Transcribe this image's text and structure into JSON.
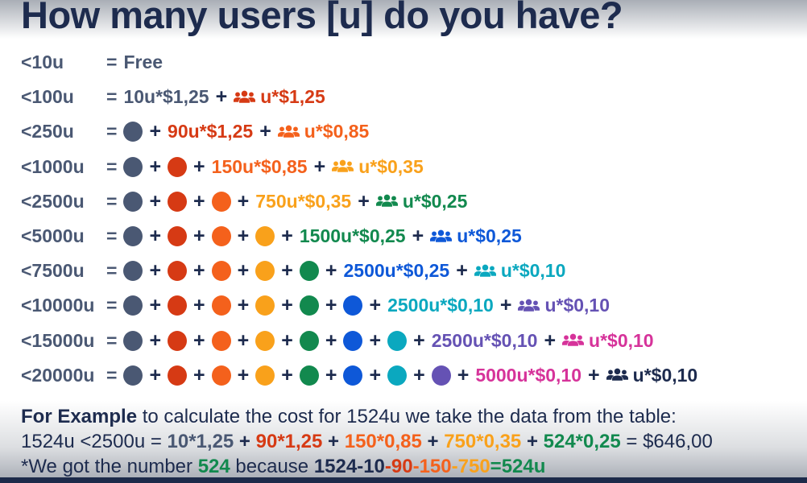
{
  "title": "How many users [u] do you have?",
  "equals_sign": "=",
  "plus_sign": "+",
  "colors": {
    "navy": "#1d2b4e",
    "slate": "#4a5873",
    "red": "#d63a14",
    "orange": "#f4611c",
    "amber": "#f9a11b",
    "green": "#12894e",
    "blue": "#0e58d8",
    "teal": "#0ba8bf",
    "purple": "#6552b4",
    "pink": "#d6339a"
  },
  "icon_name": "users-icon",
  "tiers": [
    {
      "label": "<10u",
      "dots": [],
      "terms": [
        {
          "text": "Free",
          "color": "slate",
          "icon": false
        }
      ]
    },
    {
      "label": "<100u",
      "dots": [],
      "terms": [
        {
          "text": "10u*$1,25",
          "color": "slate",
          "icon": false
        },
        {
          "text": "u*$1,25",
          "color": "red",
          "icon": true
        }
      ]
    },
    {
      "label": "<250u",
      "dots": [
        "slate"
      ],
      "terms": [
        {
          "text": "90u*$1,25",
          "color": "red",
          "icon": false
        },
        {
          "text": "u*$0,85",
          "color": "orange",
          "icon": true
        }
      ]
    },
    {
      "label": "<1000u",
      "dots": [
        "slate",
        "red"
      ],
      "terms": [
        {
          "text": "150u*$0,85",
          "color": "orange",
          "icon": false
        },
        {
          "text": "u*$0,35",
          "color": "amber",
          "icon": true
        }
      ]
    },
    {
      "label": "<2500u",
      "dots": [
        "slate",
        "red",
        "orange"
      ],
      "terms": [
        {
          "text": "750u*$0,35",
          "color": "amber",
          "icon": false
        },
        {
          "text": "u*$0,25",
          "color": "green",
          "icon": true
        }
      ]
    },
    {
      "label": "<5000u",
      "dots": [
        "slate",
        "red",
        "orange",
        "amber"
      ],
      "terms": [
        {
          "text": "1500u*$0,25",
          "color": "green",
          "icon": false
        },
        {
          "text": "u*$0,25",
          "color": "blue",
          "icon": true
        }
      ]
    },
    {
      "label": "<7500u",
      "dots": [
        "slate",
        "red",
        "orange",
        "amber",
        "green"
      ],
      "terms": [
        {
          "text": "2500u*$0,25",
          "color": "blue",
          "icon": false
        },
        {
          "text": "u*$0,10",
          "color": "teal",
          "icon": true
        }
      ]
    },
    {
      "label": "<10000u",
      "dots": [
        "slate",
        "red",
        "orange",
        "amber",
        "green",
        "blue"
      ],
      "terms": [
        {
          "text": "2500u*$0,10",
          "color": "teal",
          "icon": false
        },
        {
          "text": "u*$0,10",
          "color": "purple",
          "icon": true
        }
      ]
    },
    {
      "label": "<15000u",
      "dots": [
        "slate",
        "red",
        "orange",
        "amber",
        "green",
        "blue",
        "teal"
      ],
      "terms": [
        {
          "text": "2500u*$0,10",
          "color": "purple",
          "icon": false
        },
        {
          "text": "u*$0,10",
          "color": "pink",
          "icon": true
        }
      ]
    },
    {
      "label": "<20000u",
      "dots": [
        "slate",
        "red",
        "orange",
        "amber",
        "green",
        "blue",
        "teal",
        "purple"
      ],
      "terms": [
        {
          "text": "5000u*$0,10",
          "color": "pink",
          "icon": false
        },
        {
          "text": "u*$0,10",
          "color": "navy",
          "icon": true
        }
      ]
    }
  ],
  "example": {
    "lines": [
      [
        {
          "text": "For Example",
          "color": "navy",
          "bold": true
        },
        {
          "text": " to calculate the cost for 1524u we take the data from the table:",
          "color": "navy",
          "bold": false
        }
      ],
      [
        {
          "text": "1524u <2500u = ",
          "color": "navy",
          "bold": false
        },
        {
          "text": "10*1,25",
          "color": "slate",
          "bold": true
        },
        {
          "text": " + ",
          "color": "navy",
          "bold": true
        },
        {
          "text": "90*1,25",
          "color": "red",
          "bold": true
        },
        {
          "text": " + ",
          "color": "navy",
          "bold": true
        },
        {
          "text": "150*0,85",
          "color": "orange",
          "bold": true
        },
        {
          "text": " + ",
          "color": "navy",
          "bold": true
        },
        {
          "text": "750*0,35",
          "color": "amber",
          "bold": true
        },
        {
          "text": " + ",
          "color": "navy",
          "bold": true
        },
        {
          "text": "524*0,25",
          "color": "green",
          "bold": true
        },
        {
          "text": " = $646,00",
          "color": "navy",
          "bold": false
        }
      ],
      [
        {
          "text": "*We got the number ",
          "color": "navy",
          "bold": false
        },
        {
          "text": "524",
          "color": "green",
          "bold": true
        },
        {
          "text": " because ",
          "color": "navy",
          "bold": false
        },
        {
          "text": "1524-10",
          "color": "navy",
          "bold": true
        },
        {
          "text": "-90",
          "color": "red",
          "bold": true
        },
        {
          "text": "-150",
          "color": "orange",
          "bold": true
        },
        {
          "text": "-750",
          "color": "amber",
          "bold": true
        },
        {
          "text": "=524u",
          "color": "green",
          "bold": true
        }
      ]
    ]
  }
}
